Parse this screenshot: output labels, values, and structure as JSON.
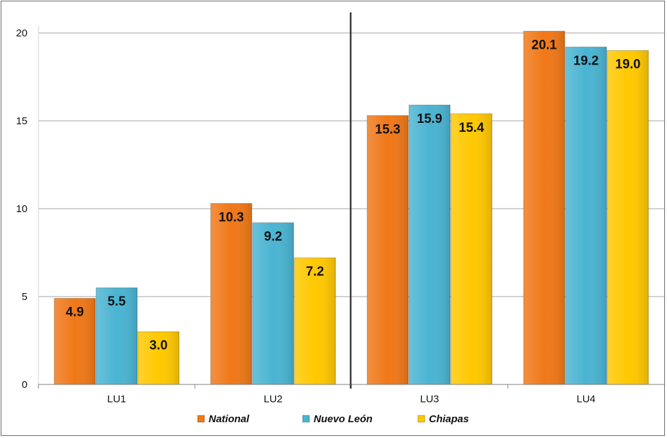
{
  "chart_data": {
    "type": "bar",
    "categories": [
      "LU1",
      "LU2",
      "LU3",
      "LU4"
    ],
    "series": [
      {
        "name": "National",
        "values": [
          4.9,
          10.3,
          15.3,
          20.1
        ],
        "color": "#f07818"
      },
      {
        "name": "Nuevo León",
        "values": [
          5.5,
          9.2,
          15.9,
          19.2
        ],
        "color": "#4ab4d2"
      },
      {
        "name": "Chiapas",
        "values": [
          3.0,
          7.2,
          15.4,
          19.0
        ],
        "color": "#ffc800"
      }
    ],
    "data_labels": [
      [
        "4.9",
        "10.3",
        "15.3",
        "20.1"
      ],
      [
        "5.5",
        "9.2",
        "15.9",
        "19.2"
      ],
      [
        "3.0",
        "7.2",
        "15.4",
        "19.0"
      ]
    ],
    "ylim": [
      0,
      20
    ],
    "yticks": [
      0,
      5,
      10,
      15,
      20
    ],
    "ytick_labels": [
      "0",
      "5",
      "10",
      "15",
      "20"
    ],
    "grid": true,
    "legend_position": "bottom",
    "divider_after_category": "LU2",
    "title": "",
    "xlabel": "",
    "ylabel": ""
  }
}
